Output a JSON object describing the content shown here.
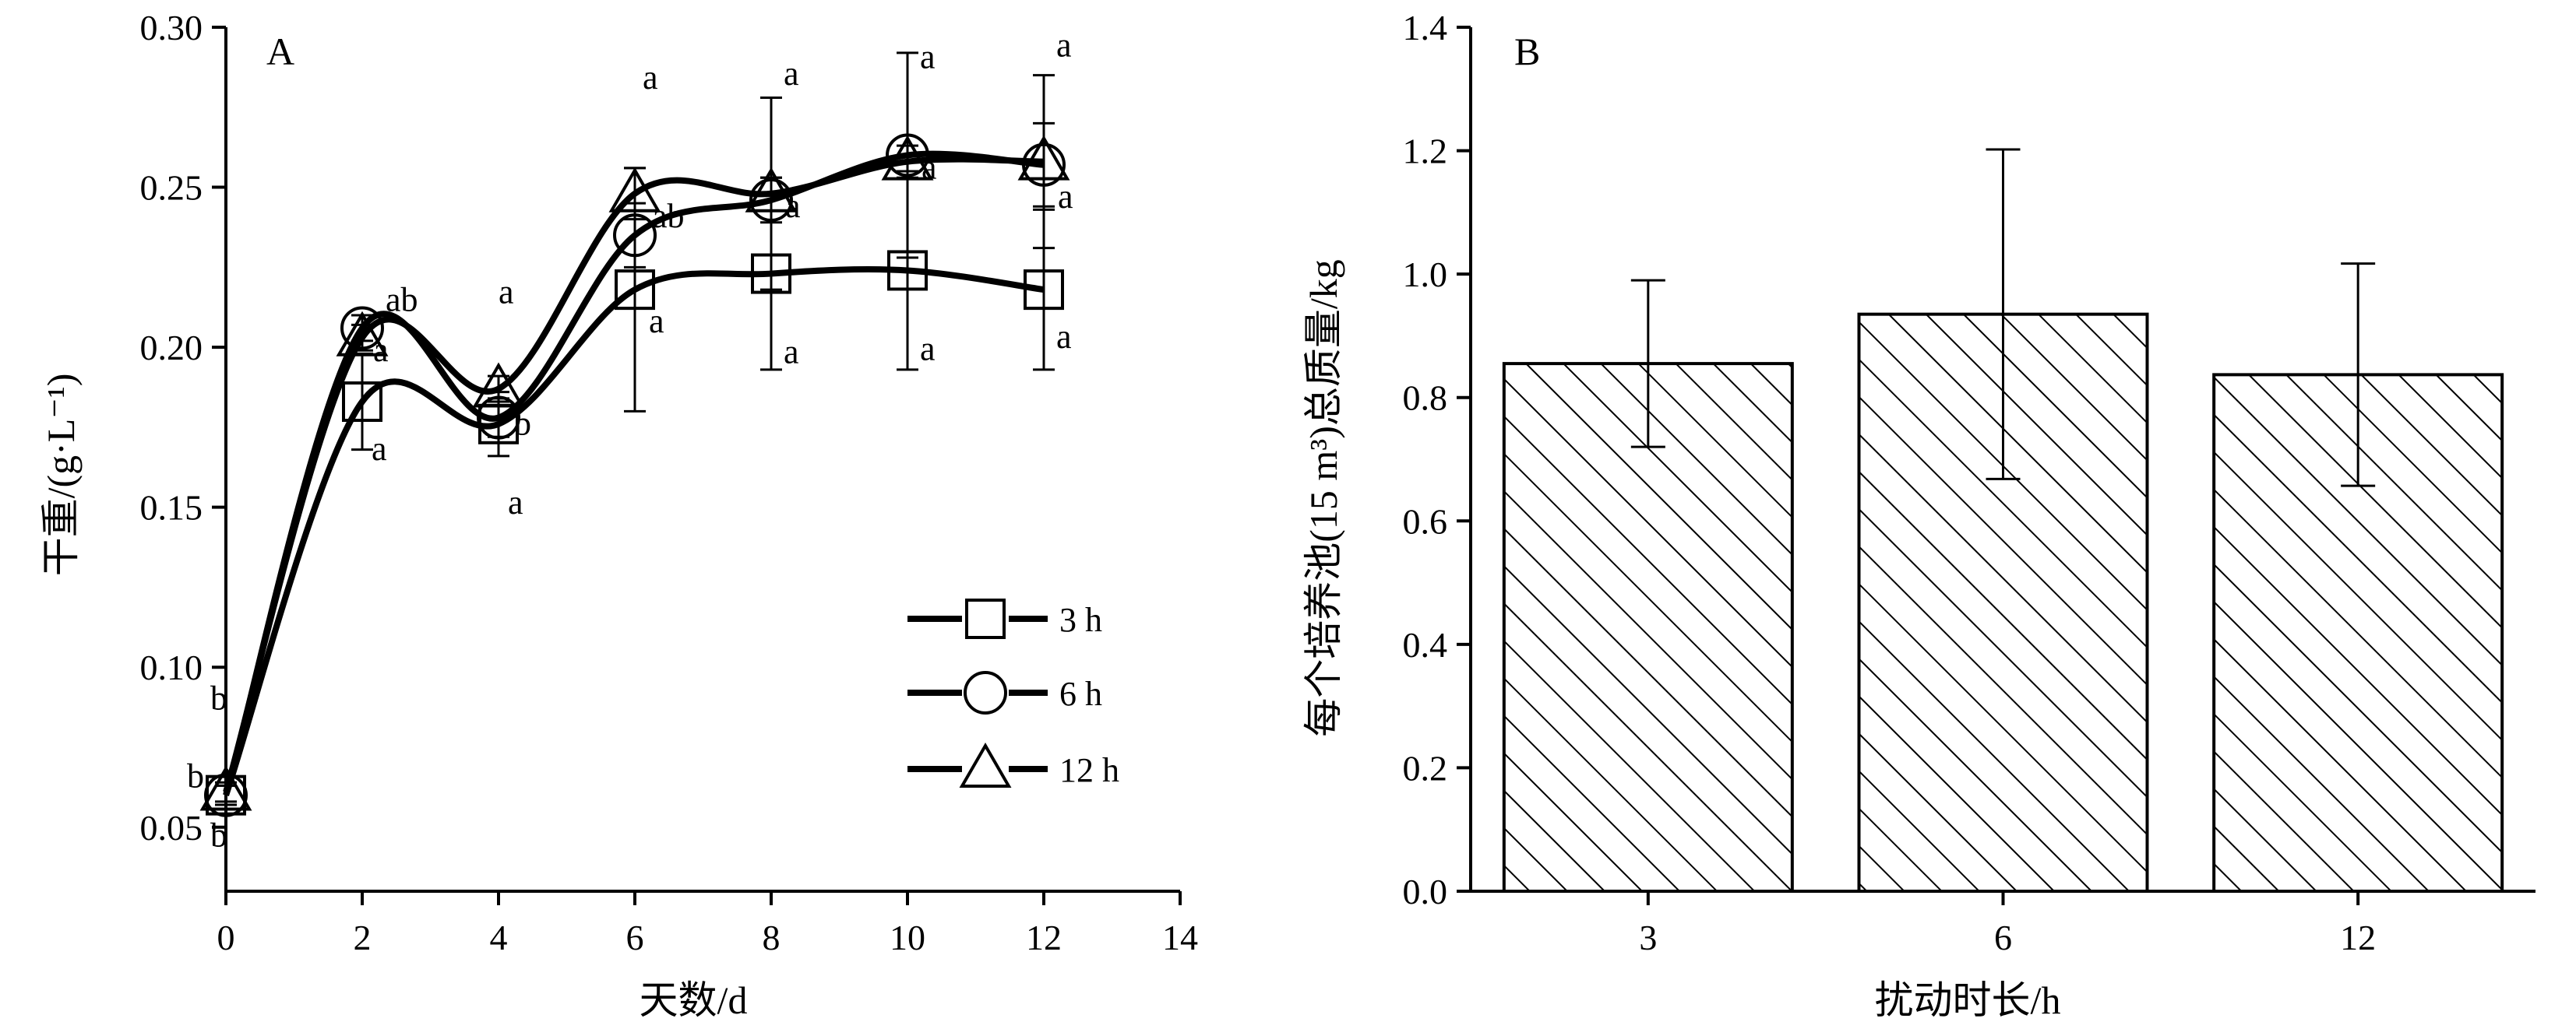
{
  "chart_data": [
    {
      "type": "line",
      "panel_label": "A",
      "xlabel": "天数/d",
      "ylabel": "干重/(g·L⁻¹)",
      "xlim": [
        0,
        14
      ],
      "ylim": [
        0.03,
        0.3
      ],
      "x_ticks": [
        "0",
        "2",
        "4",
        "6",
        "8",
        "10",
        "12",
        "14"
      ],
      "y_ticks": [
        "0.05",
        "0.10",
        "0.15",
        "0.20",
        "0.25",
        "0.30"
      ],
      "grid": false,
      "legend_position": "lower-right",
      "x": [
        0,
        2,
        4,
        6,
        8,
        10,
        12
      ],
      "series": [
        {
          "name": "3 h",
          "marker": "square",
          "values": [
            0.06,
            0.183,
            0.176,
            0.218,
            0.223,
            0.224,
            0.218
          ],
          "error": [
            0.003,
            0.015,
            0.01,
            0.038,
            0.03,
            0.031,
            0.025
          ],
          "significance": [
            "b",
            "a",
            "a",
            "a",
            "a",
            "a",
            "a"
          ]
        },
        {
          "name": "6 h",
          "marker": "circle",
          "values": [
            0.06,
            0.206,
            0.178,
            0.235,
            0.246,
            0.26,
            0.257
          ],
          "error": [
            0.003,
            0.004,
            0.006,
            0.01,
            0.007,
            0.032,
            0.013
          ],
          "significance": [
            "b",
            "ab",
            "b",
            "ab",
            "a",
            "a",
            "a"
          ]
        },
        {
          "name": "12 h",
          "marker": "triangle",
          "values": [
            0.061,
            0.203,
            0.187,
            0.248,
            0.248,
            0.258,
            0.258
          ],
          "error": [
            0.003,
            0.004,
            0.004,
            0.008,
            0.03,
            0.005,
            0.027
          ],
          "significance": [
            "b",
            "a",
            "a",
            "a",
            "a",
            "a",
            "a"
          ]
        }
      ]
    },
    {
      "type": "bar",
      "panel_label": "B",
      "xlabel": "扰动时长/h",
      "ylabel": "每个培养池(15 m³)总质量/kg",
      "ylim": [
        0,
        1.4
      ],
      "y_ticks": [
        "0.0",
        "0.2",
        "0.4",
        "0.6",
        "0.8",
        "1.0",
        "1.2",
        "1.4"
      ],
      "grid": false,
      "categories": [
        "3",
        "6",
        "12"
      ],
      "values": [
        0.855,
        0.935,
        0.837
      ],
      "error": [
        0.135,
        0.267,
        0.18
      ],
      "fill_pattern": "diagonal-hatch"
    }
  ]
}
